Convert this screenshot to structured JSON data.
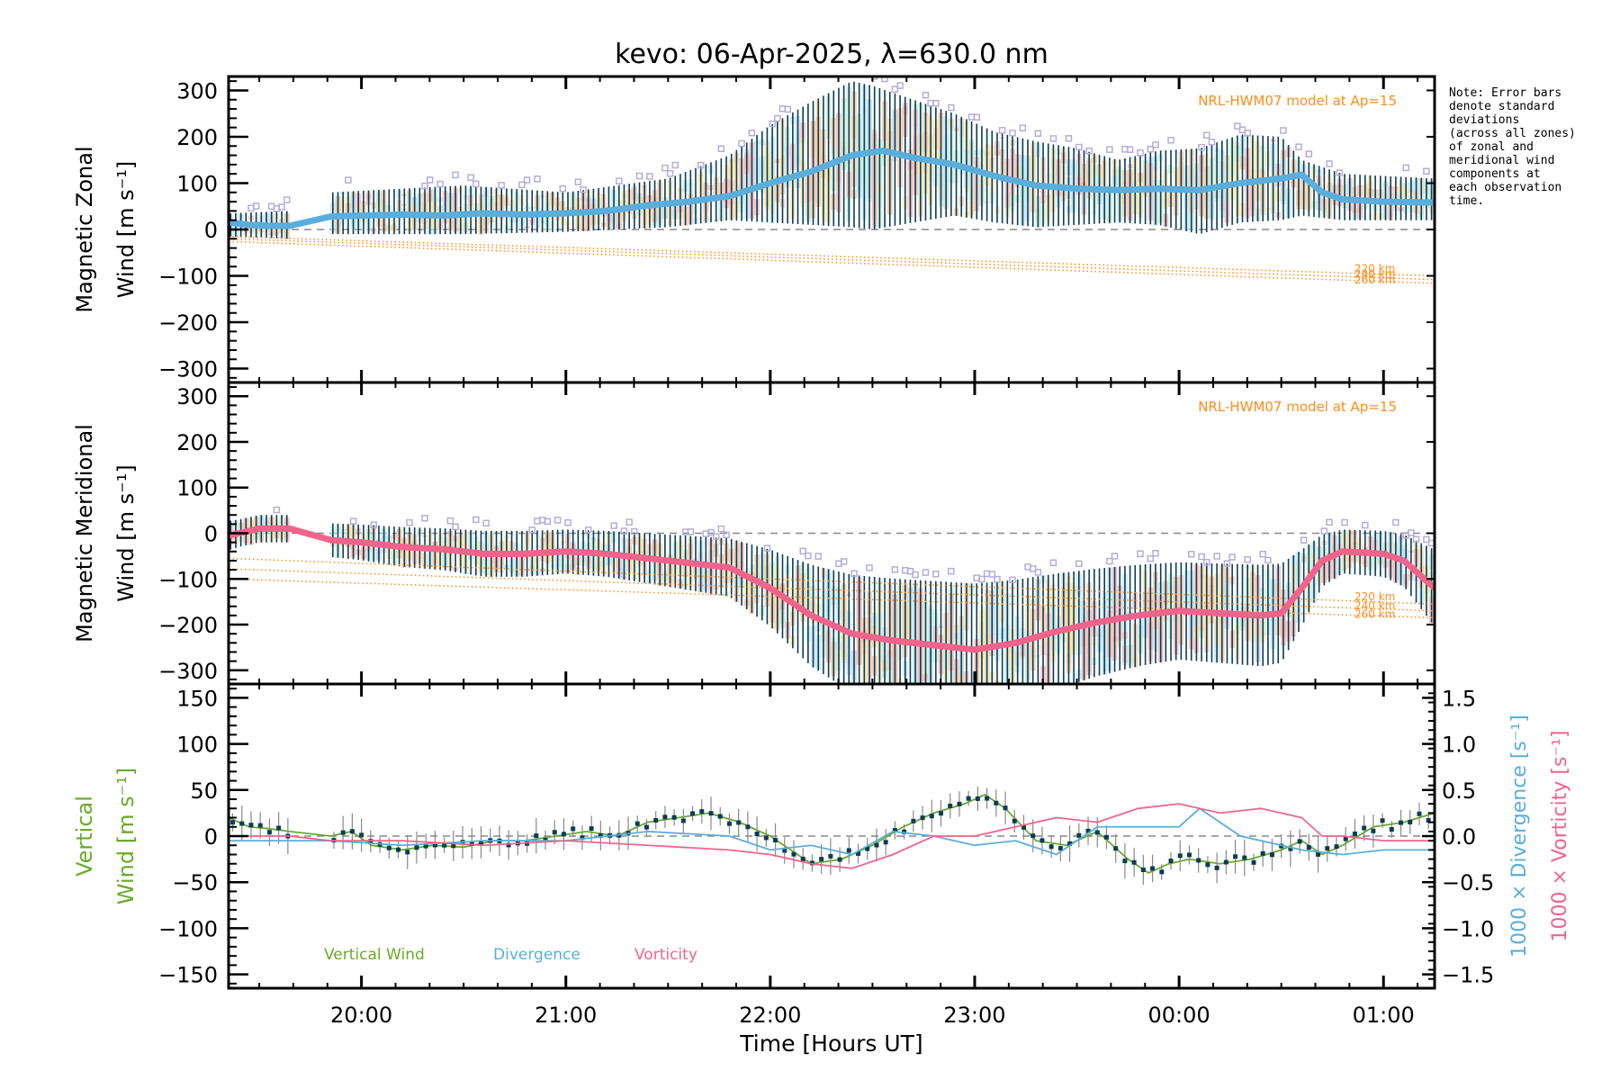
{
  "chart_data": {
    "type": "line",
    "title": "kevo: 06-Apr-2025, λ=630.0 nm",
    "xlabel": "Time [Hours UT]",
    "x_unit": "hours UT (decimal, continuing past midnight)",
    "xlim": [
      19.35,
      25.25
    ],
    "x_ticks": [
      {
        "value": 20,
        "label": "20:00"
      },
      {
        "value": 21,
        "label": "21:00"
      },
      {
        "value": 22,
        "label": "22:00"
      },
      {
        "value": 23,
        "label": "23:00"
      },
      {
        "value": 24,
        "label": "00:00"
      },
      {
        "value": 25,
        "label": "01:00"
      }
    ],
    "note": "Note: Error bars\ndenote standard\ndeviations\n(across all zones)\nof zonal and\nmeridional wind\ncomponents at\neach observation\ntime.",
    "panels": [
      {
        "id": "zonal",
        "ylabel_line1": "Magnetic Zonal",
        "ylabel_line2": "Wind [m s⁻¹]",
        "ylim": [
          -330,
          330
        ],
        "y_ticks": [
          300,
          200,
          100,
          0,
          -100,
          -200,
          -300
        ],
        "y_tick_labels": [
          "300",
          "200",
          "100",
          "0",
          "−100",
          "−200",
          "−300"
        ],
        "model_label": "NRL-HWM07 model at Ap=15",
        "model_altitudes": [
          "220 km",
          "240 km",
          "260 km"
        ],
        "model_series": [
          {
            "name": "220 km",
            "x": [
              19.35,
              25.25
            ],
            "y": [
              -15,
              -100
            ]
          },
          {
            "name": "240 km",
            "x": [
              19.35,
              25.25
            ],
            "y": [
              -20,
              -108
            ]
          },
          {
            "name": "260 km",
            "x": [
              19.35,
              25.25
            ],
            "y": [
              -26,
              -116
            ]
          }
        ],
        "mean_series": {
          "name": "Mean zonal wind",
          "color": "#5aaedc",
          "x": [
            19.35,
            19.45,
            19.55,
            19.65,
            19.85,
            20.0,
            20.2,
            20.4,
            20.6,
            20.8,
            21.0,
            21.2,
            21.4,
            21.6,
            21.8,
            22.0,
            22.2,
            22.4,
            22.55,
            22.7,
            22.9,
            23.1,
            23.3,
            23.5,
            23.7,
            23.9,
            24.1,
            24.3,
            24.5,
            24.6,
            24.7,
            24.8,
            25.0,
            25.25
          ],
          "y": [
            15,
            10,
            8,
            8,
            28,
            30,
            32,
            30,
            35,
            32,
            35,
            40,
            52,
            60,
            72,
            100,
            125,
            160,
            170,
            155,
            140,
            115,
            95,
            88,
            85,
            88,
            85,
            100,
            110,
            118,
            80,
            65,
            60,
            58
          ]
        },
        "gap": [
          19.65,
          19.85
        ],
        "errorbar_envelope": {
          "x": [
            19.35,
            19.65,
            19.85,
            20.5,
            21.0,
            21.5,
            21.8,
            22.0,
            22.2,
            22.4,
            22.5,
            22.7,
            22.9,
            23.1,
            23.3,
            23.5,
            23.7,
            23.9,
            24.1,
            24.3,
            24.5,
            24.6,
            24.8,
            25.25
          ],
          "upper": [
            35,
            40,
            80,
            95,
            80,
            110,
            160,
            225,
            275,
            320,
            310,
            280,
            250,
            210,
            190,
            175,
            150,
            170,
            175,
            205,
            200,
            150,
            120,
            110
          ],
          "lower": [
            -15,
            -20,
            -10,
            -10,
            -5,
            5,
            20,
            15,
            10,
            5,
            0,
            15,
            30,
            15,
            5,
            10,
            15,
            10,
            -10,
            15,
            20,
            30,
            20,
            20
          ]
        }
      },
      {
        "id": "meridional",
        "ylabel_line1": "Magnetic Meridional",
        "ylabel_line2": "Wind [m s⁻¹]",
        "ylim": [
          -330,
          330
        ],
        "y_ticks": [
          300,
          200,
          100,
          0,
          -100,
          -200,
          -300
        ],
        "y_tick_labels": [
          "300",
          "200",
          "100",
          "0",
          "−100",
          "−200",
          "−300"
        ],
        "model_label": "NRL-HWM07 model at Ap=15",
        "model_altitudes": [
          "220 km",
          "240 km",
          "260 km"
        ],
        "model_series": [
          {
            "name": "220 km",
            "x": [
              19.35,
              25.25
            ],
            "y": [
              -55,
              -155
            ]
          },
          {
            "name": "240 km",
            "x": [
              19.35,
              25.25
            ],
            "y": [
              -78,
              -170
            ]
          },
          {
            "name": "260 km",
            "x": [
              19.35,
              25.25
            ],
            "y": [
              -100,
              -185
            ]
          }
        ],
        "mean_series": {
          "name": "Mean meridional wind",
          "color": "#f0648c",
          "x": [
            19.35,
            19.5,
            19.65,
            19.85,
            20.0,
            20.2,
            20.4,
            20.6,
            20.8,
            21.0,
            21.2,
            21.4,
            21.6,
            21.8,
            22.0,
            22.2,
            22.4,
            22.6,
            22.8,
            23.0,
            23.2,
            23.4,
            23.6,
            23.8,
            24.0,
            24.2,
            24.4,
            24.5,
            24.6,
            24.7,
            24.8,
            25.0,
            25.1,
            25.25
          ],
          "y": [
            -5,
            10,
            10,
            -15,
            -20,
            -30,
            -35,
            -45,
            -45,
            -40,
            -45,
            -55,
            -65,
            -75,
            -120,
            -180,
            -220,
            -235,
            -245,
            -255,
            -240,
            -215,
            -195,
            -180,
            -170,
            -175,
            -180,
            -175,
            -120,
            -60,
            -40,
            -45,
            -60,
            -120
          ]
        },
        "gap": [
          19.65,
          19.85
        ]
      },
      {
        "id": "vertical",
        "ylabel_line1": "Vertical",
        "ylabel_line2": "Wind [m s⁻¹]",
        "ylim": [
          -165,
          165
        ],
        "y_ticks": [
          150,
          100,
          50,
          0,
          -50,
          -100,
          -150
        ],
        "y_tick_labels": [
          "150",
          "100",
          "50",
          "0",
          "−50",
          "−100",
          "−150"
        ],
        "right_axis_1_label": "1000 × Divergence [s⁻¹]",
        "right_axis_2_label": "1000 × Vorticity [s⁻¹]",
        "right_ylim": [
          -1.65,
          1.65
        ],
        "right_ticks": [
          1.5,
          1.0,
          0.5,
          0.0,
          -0.5,
          -1.0,
          -1.5
        ],
        "right_tick_labels": [
          "1.5",
          "1.0",
          "0.5",
          "0.0",
          "−0.5",
          "−1.0",
          "−1.5"
        ],
        "legend": [
          {
            "name": "Vertical Wind",
            "color": "#6aaa2a"
          },
          {
            "name": "Divergence",
            "color": "#5aaedc"
          },
          {
            "name": "Vorticity",
            "color": "#f0648c"
          }
        ],
        "series": [
          {
            "name": "Vertical Wind",
            "axis": "left",
            "color": "#6aaa2a",
            "marker_color": "#0a3c5a",
            "x": [
              19.35,
              19.45,
              19.55,
              19.65,
              19.85,
              19.95,
              20.05,
              20.2,
              20.35,
              20.5,
              20.65,
              20.8,
              20.95,
              21.1,
              21.25,
              21.4,
              21.55,
              21.7,
              21.85,
              22.0,
              22.1,
              22.2,
              22.35,
              22.5,
              22.65,
              22.8,
              22.95,
              23.05,
              23.15,
              23.3,
              23.45,
              23.6,
              23.75,
              23.85,
              23.95,
              24.05,
              24.2,
              24.35,
              24.5,
              24.6,
              24.7,
              24.8,
              24.95,
              25.1,
              25.25
            ],
            "y": [
              20,
              10,
              8,
              5,
              0,
              5,
              -10,
              -15,
              -10,
              -12,
              -5,
              -5,
              0,
              5,
              0,
              15,
              20,
              25,
              15,
              0,
              -15,
              -30,
              -25,
              -10,
              10,
              25,
              35,
              45,
              30,
              -5,
              -10,
              5,
              -25,
              -40,
              -30,
              -25,
              -30,
              -25,
              -15,
              -5,
              -20,
              -10,
              10,
              15,
              25
            ]
          },
          {
            "name": "Divergence",
            "axis": "right",
            "color": "#5aaedc",
            "x": [
              19.35,
              19.65,
              19.85,
              20.2,
              20.6,
              21.0,
              21.4,
              21.8,
              22.0,
              22.2,
              22.4,
              22.6,
              22.8,
              23.0,
              23.2,
              23.4,
              23.6,
              23.8,
              24.0,
              24.1,
              24.3,
              24.5,
              24.6,
              24.8,
              25.0,
              25.25
            ],
            "y": [
              -0.05,
              -0.05,
              -0.05,
              -0.1,
              -0.05,
              -0.05,
              0.05,
              0.0,
              -0.15,
              -0.1,
              -0.2,
              0.05,
              0.0,
              -0.1,
              -0.05,
              -0.2,
              0.1,
              0.1,
              0.1,
              0.3,
              0.0,
              -0.1,
              -0.15,
              -0.2,
              -0.15,
              -0.15
            ]
          },
          {
            "name": "Vorticity",
            "axis": "right",
            "color": "#f0648c",
            "x": [
              19.35,
              19.65,
              19.85,
              20.2,
              20.6,
              21.0,
              21.4,
              21.8,
              22.0,
              22.2,
              22.4,
              22.6,
              22.8,
              23.0,
              23.2,
              23.4,
              23.6,
              23.8,
              24.0,
              24.2,
              24.4,
              24.6,
              24.7,
              24.8,
              25.0,
              25.25
            ],
            "y": [
              0.0,
              0.0,
              -0.05,
              -0.05,
              -0.1,
              -0.05,
              -0.1,
              -0.15,
              -0.2,
              -0.3,
              -0.35,
              -0.2,
              0.0,
              0.0,
              0.1,
              0.2,
              0.15,
              0.3,
              0.35,
              0.25,
              0.3,
              0.2,
              0.0,
              0.0,
              -0.05,
              -0.05
            ]
          }
        ]
      }
    ]
  }
}
